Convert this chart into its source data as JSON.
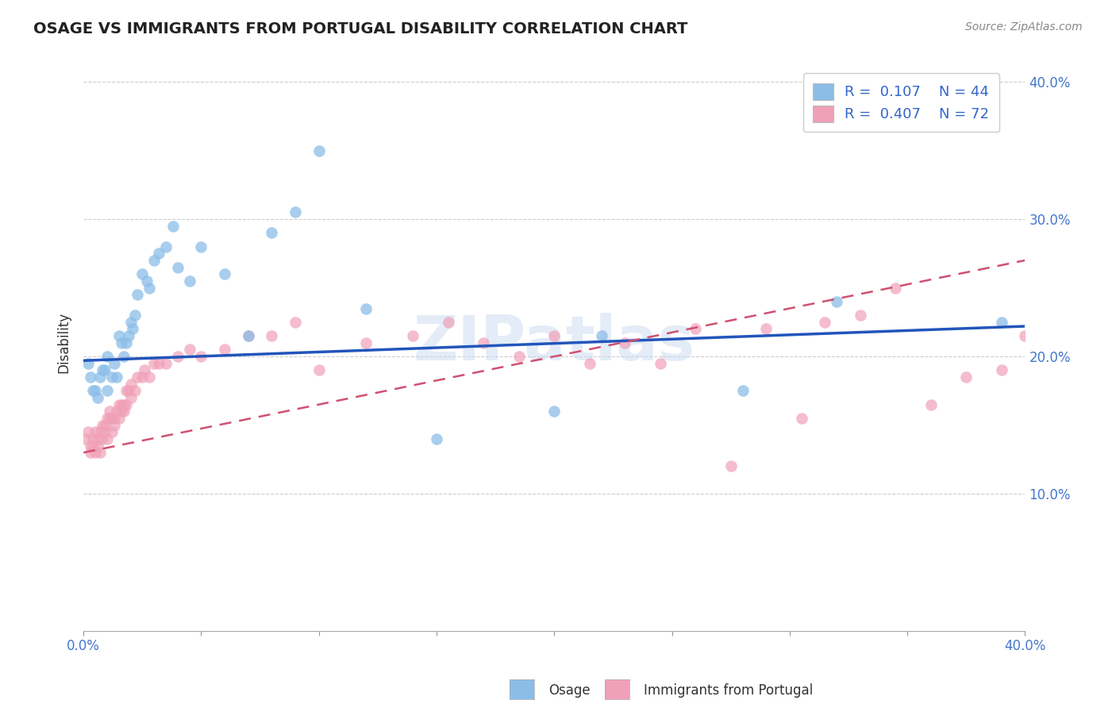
{
  "title": "OSAGE VS IMMIGRANTS FROM PORTUGAL DISABILITY CORRELATION CHART",
  "source": "Source: ZipAtlas.com",
  "ylabel": "Disability",
  "xlim": [
    0.0,
    0.4
  ],
  "ylim": [
    0.0,
    0.42
  ],
  "yticks": [
    0.1,
    0.2,
    0.3,
    0.4
  ],
  "ytick_labels": [
    "10.0%",
    "20.0%",
    "30.0%",
    "40.0%"
  ],
  "xticks": [
    0.0,
    0.05,
    0.1,
    0.15,
    0.2,
    0.25,
    0.3,
    0.35,
    0.4
  ],
  "blue_R": "0.107",
  "blue_N": "44",
  "pink_R": "0.407",
  "pink_N": "72",
  "legend_label_blue": "Osage",
  "legend_label_pink": "Immigrants from Portugal",
  "blue_color": "#8BBDE8",
  "pink_color": "#F0A0B8",
  "blue_line_color": "#2255BB",
  "pink_line_color": "#D05070",
  "watermark": "ZIPatlas",
  "blue_line_x0": 0.0,
  "blue_line_y0": 0.197,
  "blue_line_x1": 0.4,
  "blue_line_y1": 0.222,
  "pink_line_x0": 0.0,
  "pink_line_y0": 0.13,
  "pink_line_x1": 0.4,
  "pink_line_y1": 0.27,
  "blue_scatter_x": [
    0.002,
    0.003,
    0.004,
    0.005,
    0.006,
    0.007,
    0.008,
    0.009,
    0.01,
    0.01,
    0.012,
    0.013,
    0.014,
    0.015,
    0.016,
    0.017,
    0.018,
    0.019,
    0.02,
    0.021,
    0.022,
    0.023,
    0.025,
    0.027,
    0.028,
    0.03,
    0.032,
    0.035,
    0.038,
    0.04,
    0.045,
    0.05,
    0.06,
    0.07,
    0.08,
    0.09,
    0.1,
    0.12,
    0.15,
    0.2,
    0.22,
    0.28,
    0.32,
    0.39
  ],
  "blue_scatter_y": [
    0.195,
    0.185,
    0.175,
    0.175,
    0.17,
    0.185,
    0.19,
    0.19,
    0.2,
    0.175,
    0.185,
    0.195,
    0.185,
    0.215,
    0.21,
    0.2,
    0.21,
    0.215,
    0.225,
    0.22,
    0.23,
    0.245,
    0.26,
    0.255,
    0.25,
    0.27,
    0.275,
    0.28,
    0.295,
    0.265,
    0.255,
    0.28,
    0.26,
    0.215,
    0.29,
    0.305,
    0.35,
    0.235,
    0.14,
    0.16,
    0.215,
    0.175,
    0.24,
    0.225
  ],
  "pink_scatter_x": [
    0.001,
    0.002,
    0.003,
    0.003,
    0.004,
    0.004,
    0.005,
    0.005,
    0.006,
    0.006,
    0.007,
    0.007,
    0.008,
    0.008,
    0.009,
    0.009,
    0.01,
    0.01,
    0.011,
    0.011,
    0.012,
    0.012,
    0.013,
    0.013,
    0.014,
    0.015,
    0.015,
    0.016,
    0.016,
    0.017,
    0.017,
    0.018,
    0.018,
    0.019,
    0.02,
    0.02,
    0.022,
    0.023,
    0.025,
    0.026,
    0.028,
    0.03,
    0.032,
    0.035,
    0.04,
    0.045,
    0.05,
    0.06,
    0.07,
    0.08,
    0.09,
    0.1,
    0.12,
    0.14,
    0.155,
    0.17,
    0.185,
    0.2,
    0.215,
    0.23,
    0.245,
    0.26,
    0.275,
    0.29,
    0.305,
    0.315,
    0.33,
    0.345,
    0.36,
    0.375,
    0.39,
    0.4
  ],
  "pink_scatter_y": [
    0.14,
    0.145,
    0.135,
    0.13,
    0.14,
    0.135,
    0.145,
    0.13,
    0.14,
    0.135,
    0.145,
    0.13,
    0.15,
    0.14,
    0.15,
    0.145,
    0.155,
    0.14,
    0.16,
    0.155,
    0.155,
    0.145,
    0.155,
    0.15,
    0.16,
    0.155,
    0.165,
    0.165,
    0.16,
    0.165,
    0.16,
    0.175,
    0.165,
    0.175,
    0.17,
    0.18,
    0.175,
    0.185,
    0.185,
    0.19,
    0.185,
    0.195,
    0.195,
    0.195,
    0.2,
    0.205,
    0.2,
    0.205,
    0.215,
    0.215,
    0.225,
    0.19,
    0.21,
    0.215,
    0.225,
    0.21,
    0.2,
    0.215,
    0.195,
    0.21,
    0.195,
    0.22,
    0.12,
    0.22,
    0.155,
    0.225,
    0.23,
    0.25,
    0.165,
    0.185,
    0.19,
    0.215
  ]
}
